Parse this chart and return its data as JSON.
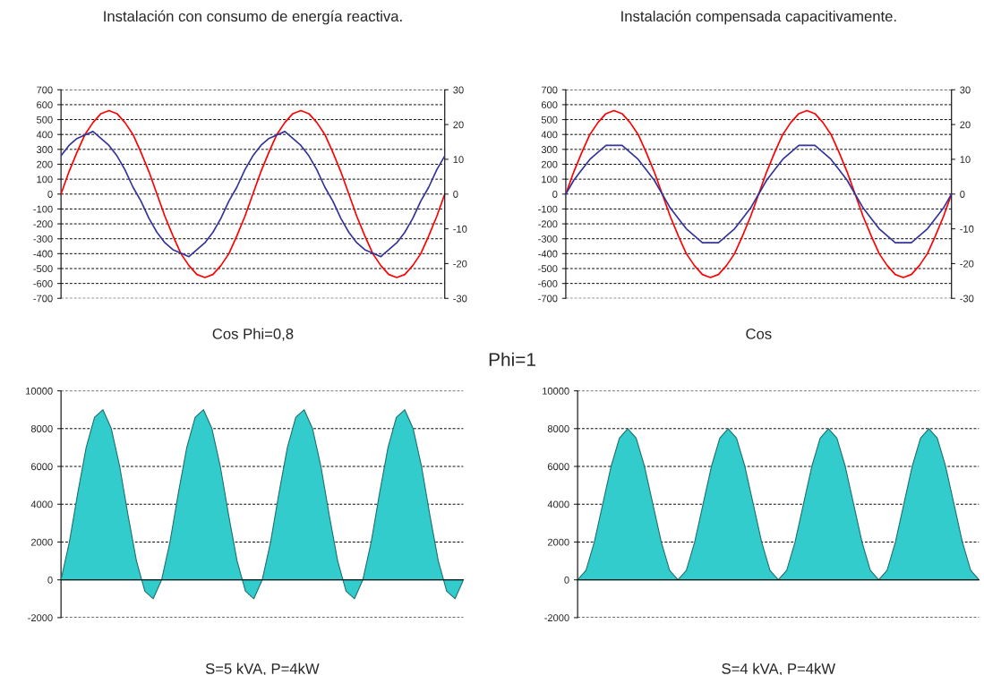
{
  "chart_data": [
    {
      "type": "line",
      "title": "Instalación con consumo de energía reactiva.",
      "xlabel": "Cos Phi=0,8",
      "categories": [
        null,
        null,
        null,
        null,
        null,
        null,
        null,
        null,
        null,
        null,
        null,
        null,
        null,
        null,
        null,
        null,
        null,
        null,
        null,
        null,
        null,
        null,
        null,
        null,
        null,
        null,
        null,
        null,
        null,
        null,
        null,
        null,
        null,
        null,
        null,
        null,
        null,
        null,
        null,
        null,
        null,
        null,
        null,
        null,
        null,
        null,
        null,
        null,
        null
      ],
      "series": [
        {
          "color": "#ff0000",
          "axis": "y",
          "values": [
            0,
            150,
            280,
            400,
            480,
            540,
            560,
            540,
            480,
            400,
            280,
            150,
            0,
            -150,
            -280,
            -400,
            -480,
            -540,
            -560,
            -540,
            -480,
            -400,
            -280,
            -150,
            0,
            150,
            280,
            400,
            480,
            540,
            560,
            540,
            480,
            400,
            280,
            150,
            0,
            -150,
            -280,
            -400,
            -480,
            -540,
            -560,
            -540,
            -480,
            -400,
            -280,
            -150,
            0
          ]
        },
        {
          "color": "#333399",
          "axis": "y2",
          "values": [
            11,
            14,
            16,
            17,
            18,
            16,
            14,
            11,
            7,
            2,
            -2,
            -7,
            -11,
            -14,
            -16,
            -17,
            -18,
            -16,
            -14,
            -11,
            -7,
            -2,
            2,
            7,
            11,
            14,
            16,
            17,
            18,
            16,
            14,
            11,
            7,
            2,
            -2,
            -7,
            -11,
            -14,
            -16,
            -17,
            -18,
            -16,
            -14,
            -11,
            -7,
            -2,
            2,
            7,
            11
          ]
        }
      ],
      "ylim": [
        -700,
        700
      ],
      "yticks": [
        -700,
        -600,
        -500,
        -400,
        -300,
        -200,
        -100,
        0,
        100,
        200,
        300,
        400,
        500,
        600,
        700
      ],
      "y2lim": [
        -30,
        30
      ],
      "y2ticks": [
        -30,
        -20,
        -10,
        0,
        10,
        20,
        30
      ],
      "grid": "y",
      "tick_labels": "y"
    },
    {
      "type": "line",
      "title": "Instalación compensada capacitivamente.",
      "xlabel": "Cos",
      "annotations": [
        "Phi=1"
      ],
      "categories": [
        null,
        null,
        null,
        null,
        null,
        null,
        null,
        null,
        null,
        null,
        null,
        null,
        null,
        null,
        null,
        null,
        null,
        null,
        null,
        null,
        null,
        null,
        null,
        null,
        null,
        null,
        null,
        null,
        null,
        null,
        null,
        null,
        null,
        null,
        null,
        null,
        null,
        null,
        null,
        null,
        null,
        null,
        null,
        null,
        null,
        null,
        null,
        null,
        null
      ],
      "series": [
        {
          "color": "#ff0000",
          "axis": "y",
          "values": [
            0,
            150,
            280,
            400,
            480,
            540,
            560,
            540,
            480,
            400,
            280,
            150,
            0,
            -150,
            -280,
            -400,
            -480,
            -540,
            -560,
            -540,
            -480,
            -400,
            -280,
            -150,
            0,
            150,
            280,
            400,
            480,
            540,
            560,
            540,
            480,
            400,
            280,
            150,
            0,
            -150,
            -280,
            -400,
            -480,
            -540,
            -560,
            -540,
            -480,
            -400,
            -280,
            -150,
            0
          ]
        },
        {
          "color": "#333399",
          "axis": "y2",
          "values": [
            0,
            4,
            7,
            10,
            12,
            14,
            14,
            14,
            12,
            10,
            7,
            4,
            0,
            -4,
            -7,
            -10,
            -12,
            -14,
            -14,
            -14,
            -12,
            -10,
            -7,
            -4,
            0,
            4,
            7,
            10,
            12,
            14,
            14,
            14,
            12,
            10,
            7,
            4,
            0,
            -4,
            -7,
            -10,
            -12,
            -14,
            -14,
            -14,
            -12,
            -10,
            -7,
            -4,
            0
          ]
        }
      ],
      "ylim": [
        -700,
        700
      ],
      "yticks": [
        -700,
        -600,
        -500,
        -400,
        -300,
        -200,
        -100,
        0,
        100,
        200,
        300,
        400,
        500,
        600,
        700
      ],
      "y2lim": [
        -30,
        30
      ],
      "y2ticks": [
        -30,
        -20,
        -10,
        0,
        10,
        20,
        30
      ],
      "grid": "y",
      "tick_labels": "y"
    },
    {
      "type": "area",
      "xlabel": "S=5 kVA, P=4kW",
      "categories": [
        null,
        null,
        null,
        null,
        null,
        null,
        null,
        null,
        null,
        null,
        null,
        null,
        null,
        null,
        null,
        null,
        null,
        null,
        null,
        null,
        null,
        null,
        null,
        null,
        null,
        null,
        null,
        null,
        null,
        null,
        null,
        null,
        null,
        null,
        null,
        null,
        null,
        null,
        null,
        null,
        null,
        null,
        null,
        null,
        null,
        null,
        null,
        null,
        null
      ],
      "series": [
        {
          "color": "#33cccc",
          "values": [
            0,
            2000,
            4600,
            7000,
            8600,
            9000,
            8000,
            6000,
            3400,
            1000,
            -600,
            -1000,
            0,
            2000,
            4600,
            7000,
            8600,
            9000,
            8000,
            6000,
            3400,
            1000,
            -600,
            -1000,
            0,
            2000,
            4600,
            7000,
            8600,
            9000,
            8000,
            6000,
            3400,
            1000,
            -600,
            -1000,
            0,
            2000,
            4600,
            7000,
            8600,
            9000,
            8000,
            6000,
            3400,
            1000,
            -600,
            -1000,
            0
          ]
        }
      ],
      "ylim": [
        -2000,
        10000
      ],
      "yticks": [
        -2000,
        0,
        2000,
        4000,
        6000,
        8000,
        10000
      ],
      "grid": "y",
      "tick_labels": "y"
    },
    {
      "type": "area",
      "xlabel": "S=4 kVA, P=4kW",
      "categories": [
        null,
        null,
        null,
        null,
        null,
        null,
        null,
        null,
        null,
        null,
        null,
        null,
        null,
        null,
        null,
        null,
        null,
        null,
        null,
        null,
        null,
        null,
        null,
        null,
        null,
        null,
        null,
        null,
        null,
        null,
        null,
        null,
        null,
        null,
        null,
        null,
        null,
        null,
        null,
        null,
        null,
        null,
        null,
        null,
        null,
        null,
        null,
        null,
        null
      ],
      "series": [
        {
          "color": "#33cccc",
          "values": [
            0,
            500,
            2000,
            4000,
            6000,
            7500,
            8000,
            7500,
            6000,
            4000,
            2000,
            500,
            0,
            500,
            2000,
            4000,
            6000,
            7500,
            8000,
            7500,
            6000,
            4000,
            2000,
            500,
            0,
            500,
            2000,
            4000,
            6000,
            7500,
            8000,
            7500,
            6000,
            4000,
            2000,
            500,
            0,
            500,
            2000,
            4000,
            6000,
            7500,
            8000,
            7500,
            6000,
            4000,
            2000,
            500,
            0
          ]
        }
      ],
      "ylim": [
        -2000,
        10000
      ],
      "yticks": [
        -2000,
        0,
        2000,
        4000,
        6000,
        8000,
        10000
      ],
      "grid": "y",
      "tick_labels": "y"
    }
  ]
}
